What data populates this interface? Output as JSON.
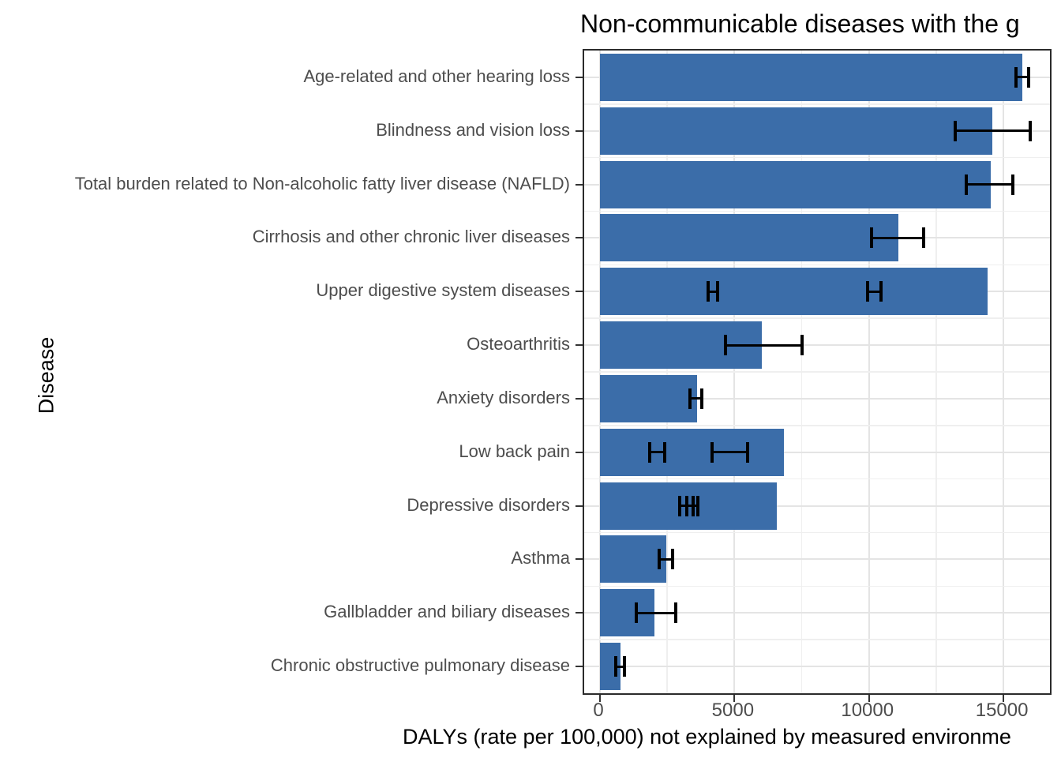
{
  "chart_data": {
    "type": "bar",
    "orientation": "horizontal",
    "title": "Non-communicable diseases with the g",
    "xlabel": "DALYs (rate per 100,000) not explained by measured environme",
    "ylabel": "Disease",
    "categories": [
      "Age-related and other hearing loss",
      "Blindness and vision loss",
      "Total burden related to Non-alcoholic fatty liver disease (NAFLD)",
      "Cirrhosis and other chronic liver diseases",
      "Upper digestive system diseases",
      "Osteoarthritis",
      "Anxiety disorders",
      "Low back pain",
      "Depressive disorders",
      "Asthma",
      "Gallbladder and biliary diseases",
      "Chronic obstructive pulmonary disease"
    ],
    "values": [
      15700,
      14590,
      14530,
      11090,
      14410,
      6020,
      3610,
      6840,
      6570,
      2470,
      2030,
      760
    ],
    "error_bars": [
      [
        [
          15480,
          15950
        ]
      ],
      [
        [
          13200,
          16000
        ]
      ],
      [
        [
          13620,
          15350
        ]
      ],
      [
        [
          10100,
          12030
        ]
      ],
      [
        [
          4020,
          4370
        ],
        [
          9950,
          10450
        ]
      ],
      [
        [
          4670,
          7510
        ]
      ],
      [
        [
          3350,
          3790
        ]
      ],
      [
        [
          1850,
          2410
        ],
        [
          4170,
          5490
        ]
      ],
      [
        [
          2960,
          3450
        ],
        [
          3230,
          3640
        ]
      ],
      [
        [
          2200,
          2700
        ]
      ],
      [
        [
          1350,
          2820
        ]
      ],
      [
        [
          590,
          910
        ]
      ]
    ],
    "x_ticks": [
      0,
      5000,
      10000,
      15000
    ],
    "x_tick_labels": [
      "0",
      "5000",
      "10000",
      "15000"
    ],
    "x_minor_ticks": [
      2500,
      7500,
      12500
    ],
    "xlim": [
      0,
      16730
    ],
    "bar_color": "#3b6da9",
    "error_color": "#000000",
    "grid": true,
    "legend": false
  }
}
